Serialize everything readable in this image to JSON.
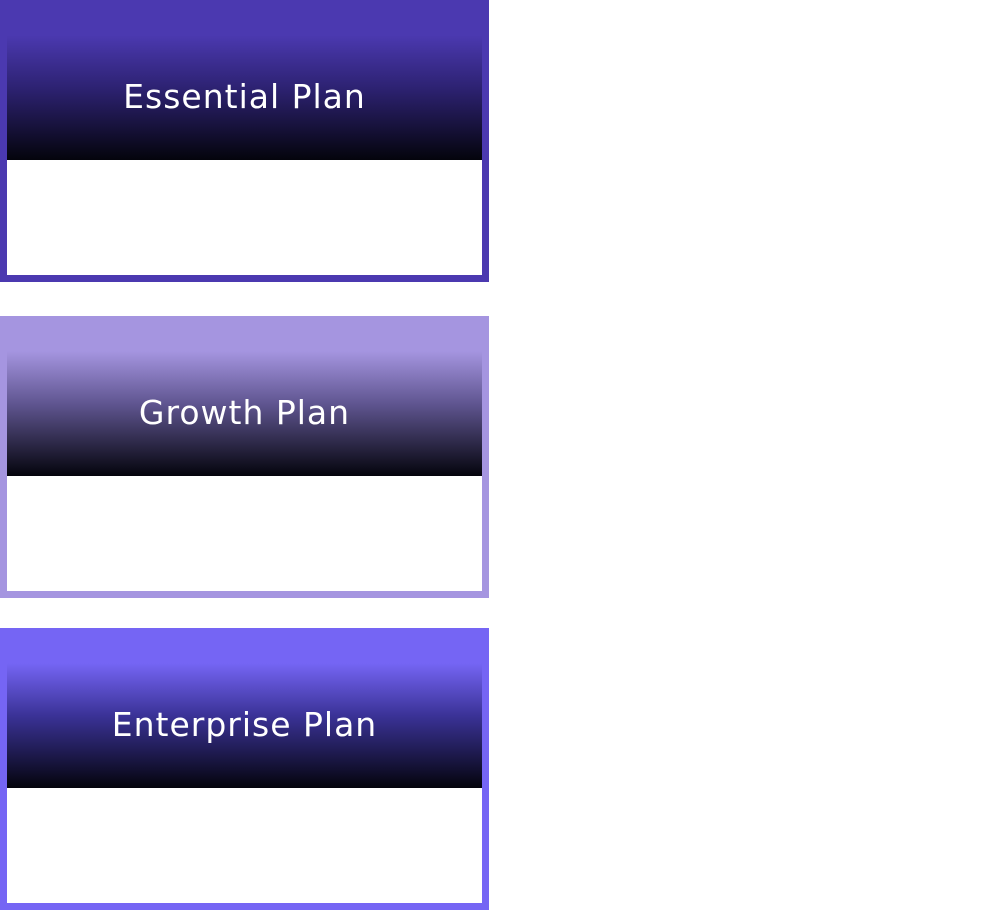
{
  "plans": [
    {
      "id": "essential",
      "title": "Essential Plan",
      "accent": "#4b39b0"
    },
    {
      "id": "growth",
      "title": "Growth Plan",
      "accent": "#a595e0"
    },
    {
      "id": "enterprise",
      "title": "Enterprise Plan",
      "accent": "#7565f4"
    }
  ]
}
